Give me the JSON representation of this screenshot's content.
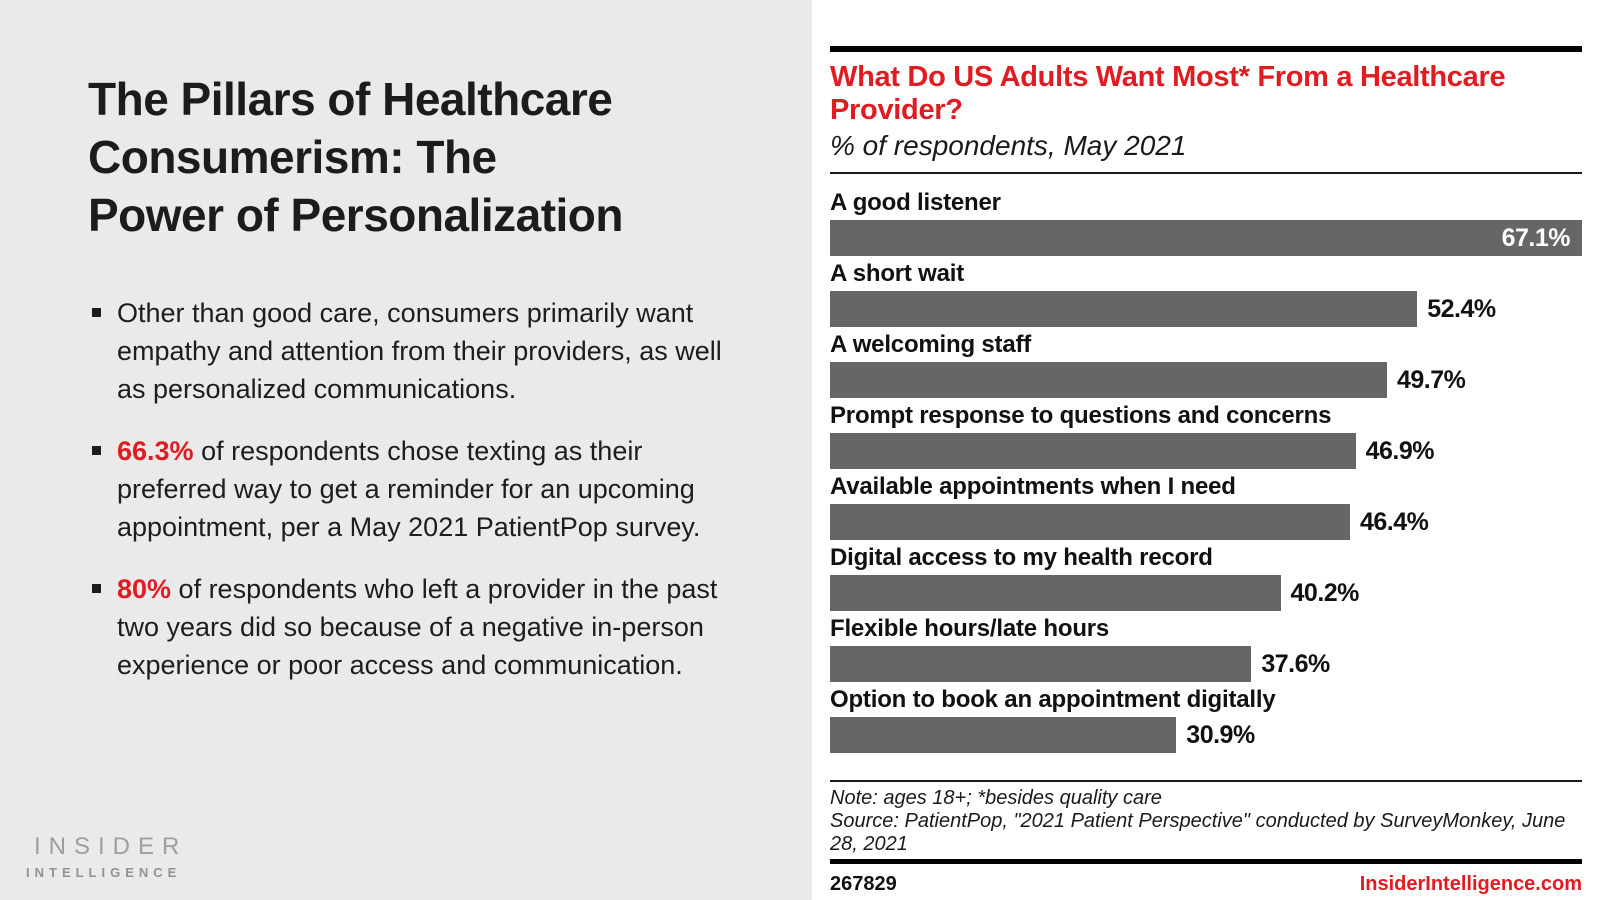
{
  "left_panel": {
    "title": "The Pillars of Healthcare Consumerism: The Power of Personalization",
    "title_lines": [
      "The Pillars of Healthcare",
      "Consumerism: The",
      "Power of Personalization"
    ],
    "bullets": [
      {
        "highlight": "",
        "text": "Other than good care, consumers primarily want empathy and attention from their providers, as well as personalized communications."
      },
      {
        "highlight": "66.3%",
        "text": " of respondents chose texting as their preferred way to get a reminder for an upcoming appointment, per a May 2021 PatientPop survey."
      },
      {
        "highlight": "80%",
        "text": " of respondents who left a provider in the past two years did so because of a negative in-person experience or poor access and communication."
      }
    ],
    "logo": {
      "line1": "INSIDER",
      "line2": "INTELLIGENCE"
    }
  },
  "chart": {
    "title": "What Do US Adults Want Most* From a Healthcare Provider?",
    "title_lines": [
      "What Do US Adults Want Most* From a Healthcare",
      "Provider?"
    ],
    "subtitle": "% of respondents, May 2021",
    "note": "Note: ages 18+; *besides quality care",
    "source": "Source: PatientPop, \"2021 Patient Perspective\" conducted by SurveyMonkey, June 28, 2021",
    "chart_id": "267829",
    "website": "InsiderIntelligence.com"
  },
  "chart_data": {
    "type": "bar",
    "orientation": "horizontal",
    "title": "What Do US Adults Want Most* From a Healthcare Provider?",
    "subtitle": "% of respondents, May 2021",
    "categories": [
      "A good listener",
      "A short wait",
      "A welcoming staff",
      "Prompt response to questions and concerns",
      "Available appointments when I need",
      "Digital access to my health record",
      "Flexible hours/late hours",
      "Option to book an appointment digitally"
    ],
    "values": [
      67.1,
      52.4,
      49.7,
      46.9,
      46.4,
      40.2,
      37.6,
      30.9
    ],
    "value_suffix": "%",
    "xlabel": "",
    "ylabel": "",
    "xlim": [
      0,
      67.1
    ],
    "grid": false,
    "legend": false,
    "value_labels": "end-of-bar, max value labeled inside bar in white"
  },
  "colors": {
    "accent_red": "#e11b22",
    "bar_gray": "#666666",
    "panel_gray": "#eaeaea",
    "text_black": "#111111",
    "logo_gray": "#9e9e9e"
  }
}
